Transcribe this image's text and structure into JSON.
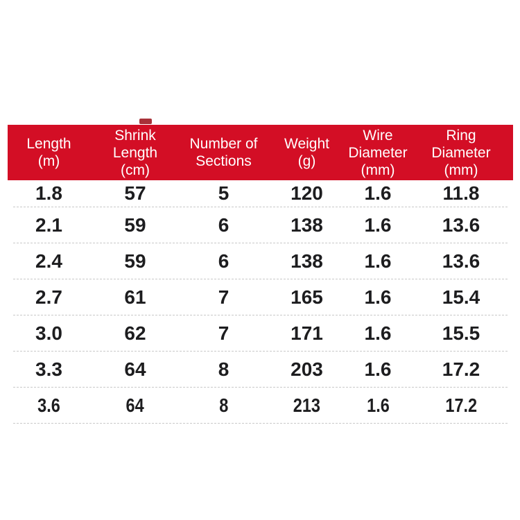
{
  "colors": {
    "header_bg": "#d30e25",
    "header_text": "#ffffff",
    "body_text": "#1d1d1f",
    "separator": "#c8c8c8",
    "remnant": "#9e1b24",
    "background": "#ffffff"
  },
  "table": {
    "columns": [
      {
        "label": "Length\n(m)"
      },
      {
        "label": "Shrink\nLength\n(cm)"
      },
      {
        "label": "Number of\nSections"
      },
      {
        "label": "Weight\n(g)"
      },
      {
        "label": "Wire\nDiameter\n(mm)"
      },
      {
        "label": "Ring\nDiameter\n(mm)"
      }
    ],
    "rows": [
      [
        "1.8",
        "57",
        "5",
        "120",
        "1.6",
        "11.8"
      ],
      [
        "2.1",
        "59",
        "6",
        "138",
        "1.6",
        "13.6"
      ],
      [
        "2.4",
        "59",
        "6",
        "138",
        "1.6",
        "13.6"
      ],
      [
        "2.7",
        "61",
        "7",
        "165",
        "1.6",
        "15.4"
      ],
      [
        "3.0",
        "62",
        "7",
        "171",
        "1.6",
        "15.5"
      ],
      [
        "3.3",
        "64",
        "8",
        "203",
        "1.6",
        "17.2"
      ],
      [
        "3.6",
        "64",
        "8",
        "213",
        "1.6",
        "17.2"
      ]
    ]
  },
  "chart_data": {
    "type": "table",
    "title": "",
    "columns": [
      "Length (m)",
      "Shrink Length (cm)",
      "Number of Sections",
      "Weight (g)",
      "Wire Diameter (mm)",
      "Ring Diameter (mm)"
    ],
    "rows": [
      [
        1.8,
        57,
        5,
        120,
        1.6,
        11.8
      ],
      [
        2.1,
        59,
        6,
        138,
        1.6,
        13.6
      ],
      [
        2.4,
        59,
        6,
        138,
        1.6,
        13.6
      ],
      [
        2.7,
        61,
        7,
        165,
        1.6,
        15.4
      ],
      [
        3.0,
        62,
        7,
        171,
        1.6,
        15.5
      ],
      [
        3.3,
        64,
        8,
        203,
        1.6,
        17.2
      ],
      [
        3.6,
        64,
        8,
        213,
        1.6,
        17.2
      ]
    ],
    "layout": {
      "header_position": "top",
      "separators": "dashed",
      "grid": "rows-only"
    }
  }
}
